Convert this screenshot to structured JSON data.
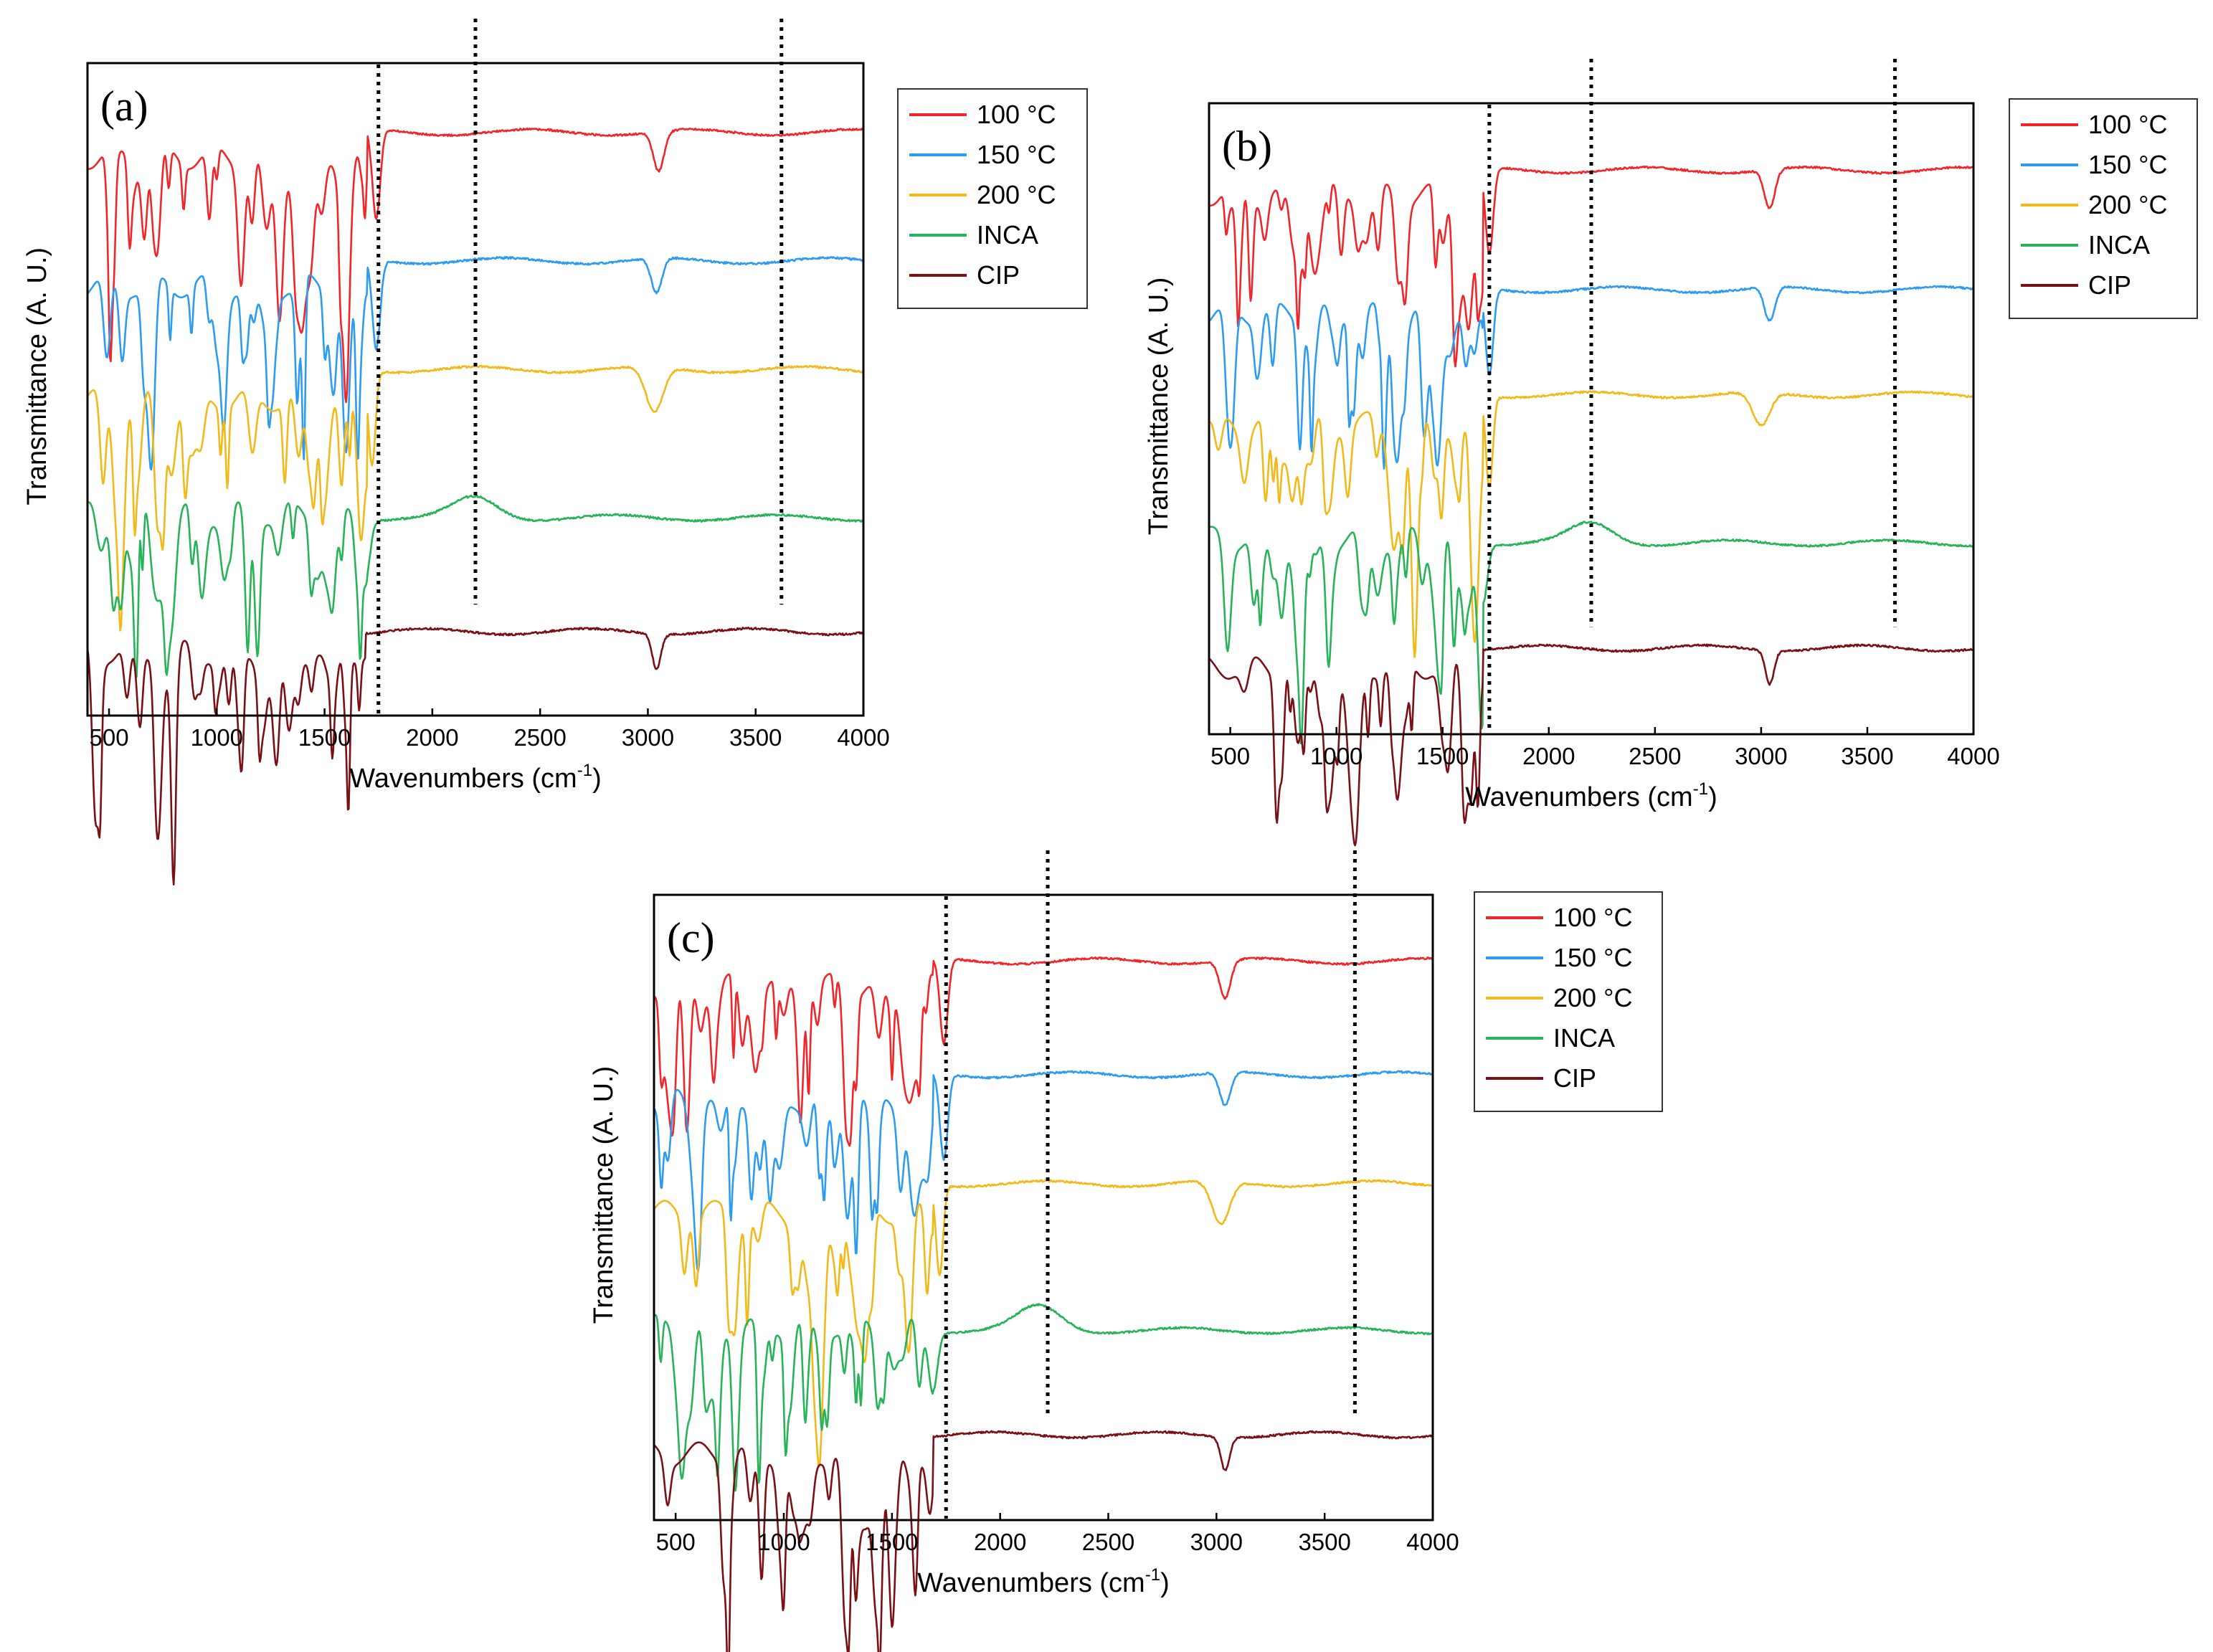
{
  "figure_title": "",
  "legend": {
    "entries": [
      {
        "label": "100 °C",
        "color": "#f0262a"
      },
      {
        "label": "150 °C",
        "color": "#2d9cf0"
      },
      {
        "label": "200 °C",
        "color": "#f2b91a"
      },
      {
        "label": "INCA",
        "color": "#27b35a"
      },
      {
        "label": "CIP",
        "color": "#7a1016"
      }
    ]
  },
  "chart_data": [
    {
      "type": "line",
      "panel_label": "(a)",
      "xlabel": "Wavenumbers (cm",
      "xlabel_sup": "-1",
      "xlabel_end": ")",
      "ylabel": "Transmittance (A. U.)",
      "xlim": [
        400,
        4000
      ],
      "xticks": [
        "500",
        "1000",
        "1500",
        "2000",
        "2500",
        "3000",
        "3500",
        "4000"
      ],
      "y_ticks_shown": false,
      "dotted_reference_lines_cm-1": [
        1750,
        2200,
        3620
      ],
      "series": [
        {
          "name": "100 °C",
          "offset": 5.6,
          "plateau": 0.3,
          "shelf_end": 1700,
          "dips": [
            [
              1290,
              0.85,
              15
            ],
            [
              1600,
              0.55,
              14
            ],
            [
              1740,
              0.9,
              18
            ],
            [
              3050,
              0.4,
              25
            ]
          ]
        },
        {
          "name": "150 °C",
          "offset": 4.3,
          "plateau": 0.3,
          "shelf_end": 1700,
          "dips": [
            [
              1380,
              0.7,
              16
            ],
            [
              1600,
              0.55,
              14
            ],
            [
              1740,
              0.9,
              18
            ],
            [
              3040,
              0.35,
              25
            ]
          ]
        },
        {
          "name": "200 °C",
          "offset": 3.15,
          "plateau": 0.35,
          "shelf_end": 1700,
          "dips": [
            [
              1380,
              0.7,
              16
            ],
            [
              1720,
              0.95,
              16
            ],
            [
              3030,
              0.45,
              40
            ]
          ]
        },
        {
          "name": "INCA",
          "offset": 2.0,
          "plateau": 0.0,
          "shelf_end": 1700,
          "dips": [
            [
              700,
              0.4,
              15
            ],
            [
              1690,
              0.6,
              20
            ],
            [
              2200,
              -0.2,
              100
            ]
          ]
        },
        {
          "name": "CIP",
          "offset": 0.6,
          "plateau": 0.25,
          "shelf_end": 1690,
          "dips": [
            [
              720,
              1.0,
              12
            ],
            [
              1280,
              0.9,
              14
            ],
            [
              1600,
              0.75,
              12
            ],
            [
              3040,
              0.35,
              20
            ]
          ]
        }
      ]
    },
    {
      "type": "line",
      "panel_label": "(b)",
      "xlabel": "Wavenumbers (cm",
      "xlabel_sup": "-1",
      "xlabel_end": ")",
      "ylabel": "Transmittance (A. U.)",
      "xlim": [
        400,
        4000
      ],
      "xticks": [
        "500",
        "1000",
        "1500",
        "2000",
        "2500",
        "3000",
        "3500",
        "4000"
      ],
      "y_ticks_shown": false,
      "dotted_reference_lines_cm-1": [
        1720,
        2200,
        3630
      ],
      "series": [
        {
          "name": "100 °C",
          "offset": 5.6,
          "plateau": 0.3,
          "shelf_end": 1690,
          "dips": [
            [
              1290,
              0.85,
              15
            ],
            [
              1620,
              0.55,
              14
            ],
            [
              1720,
              0.9,
              18
            ],
            [
              3040,
              0.4,
              25
            ]
          ]
        },
        {
          "name": "150 °C",
          "offset": 4.35,
          "plateau": 0.3,
          "shelf_end": 1690,
          "dips": [
            [
              1290,
              0.8,
              15
            ],
            [
              1610,
              0.6,
              14
            ],
            [
              1720,
              0.9,
              18
            ],
            [
              3040,
              0.35,
              25
            ]
          ]
        },
        {
          "name": "200 °C",
          "offset": 3.2,
          "plateau": 0.35,
          "shelf_end": 1690,
          "dips": [
            [
              1380,
              0.7,
              16
            ],
            [
              1720,
              0.95,
              16
            ],
            [
              3000,
              0.35,
              40
            ]
          ]
        },
        {
          "name": "INCA",
          "offset": 2.0,
          "plateau": 0.0,
          "shelf_end": 1690,
          "dips": [
            [
              700,
              0.4,
              15
            ],
            [
              1690,
              0.6,
              20
            ],
            [
              2200,
              -0.2,
              100
            ]
          ]
        },
        {
          "name": "CIP",
          "offset": 0.65,
          "plateau": 0.25,
          "shelf_end": 1690,
          "dips": [
            [
              720,
              1.0,
              12
            ],
            [
              1280,
              0.9,
              14
            ],
            [
              1600,
              0.75,
              12
            ],
            [
              3040,
              0.35,
              20
            ]
          ]
        }
      ]
    },
    {
      "type": "line",
      "panel_label": "(c)",
      "xlabel": "Wavenumbers (cm",
      "xlabel_sup": "-1",
      "xlabel_end": ")",
      "ylabel": "Transmittance (A. U.)",
      "xlim": [
        400,
        4000
      ],
      "xticks": [
        "500",
        "1000",
        "1500",
        "2000",
        "2500",
        "3000",
        "3500",
        "4000"
      ],
      "y_ticks_shown": false,
      "dotted_reference_lines_cm-1": [
        1750,
        2220,
        3640
      ],
      "series": [
        {
          "name": "100 °C",
          "offset": 5.6,
          "plateau": 0.3,
          "shelf_end": 1690,
          "dips": [
            [
              1290,
              0.85,
              15
            ],
            [
              1620,
              0.55,
              14
            ],
            [
              1740,
              0.9,
              18
            ],
            [
              3040,
              0.4,
              25
            ]
          ]
        },
        {
          "name": "150 °C",
          "offset": 4.4,
          "plateau": 0.3,
          "shelf_end": 1690,
          "dips": [
            [
              1290,
              0.8,
              15
            ],
            [
              1610,
              0.6,
              14
            ],
            [
              1740,
              0.9,
              18
            ],
            [
              3040,
              0.35,
              25
            ]
          ]
        },
        {
          "name": "200 °C",
          "offset": 3.2,
          "plateau": 0.35,
          "shelf_end": 1690,
          "dips": [
            [
              1380,
              0.7,
              16
            ],
            [
              1720,
              0.95,
              16
            ],
            [
              3020,
              0.45,
              40
            ]
          ]
        },
        {
          "name": "INCA",
          "offset": 2.0,
          "plateau": 0.0,
          "shelf_end": 1690,
          "dips": [
            [
              700,
              0.4,
              15
            ],
            [
              1690,
              0.6,
              20
            ],
            [
              2180,
              -0.25,
              100
            ]
          ]
        },
        {
          "name": "CIP",
          "offset": 0.65,
          "plateau": 0.25,
          "shelf_end": 1690,
          "dips": [
            [
              720,
              1.0,
              12
            ],
            [
              1280,
              0.9,
              14
            ],
            [
              1600,
              0.75,
              12
            ],
            [
              3040,
              0.35,
              20
            ]
          ]
        }
      ]
    }
  ]
}
